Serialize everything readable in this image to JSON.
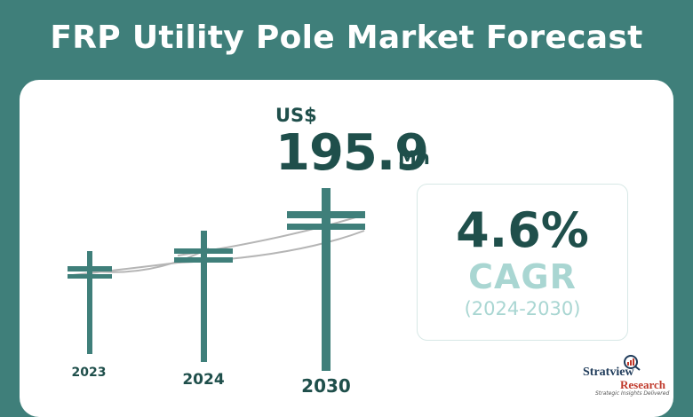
{
  "title": "FRP Utility Pole Market Forecast",
  "market_value": {
    "currency": "US$",
    "value": "195.9",
    "unit": "Mn"
  },
  "cagr": {
    "value": "4.6%",
    "label": "CAGR",
    "period": "(2024-2030)"
  },
  "brand": {
    "name_line1": "Stratview",
    "name_line2": "Research",
    "tagline": "Strategic Insights Delivered"
  },
  "colors": {
    "background": "#3f7f7a",
    "pole": "#3f7f7a",
    "wire": "#b5b5b5",
    "text_dark": "#1f4f4b",
    "text_light": "#a9d6d2",
    "brand_red": "#c0392b"
  },
  "chart_data": {
    "type": "bar",
    "categories": [
      "2023",
      "2024",
      "2030"
    ],
    "labels_shown": [
      "195.9"
    ],
    "note_values": "Relative heights depicted as utility poles; only 2030 value labeled (US$ 195.9 Mn)."
  }
}
